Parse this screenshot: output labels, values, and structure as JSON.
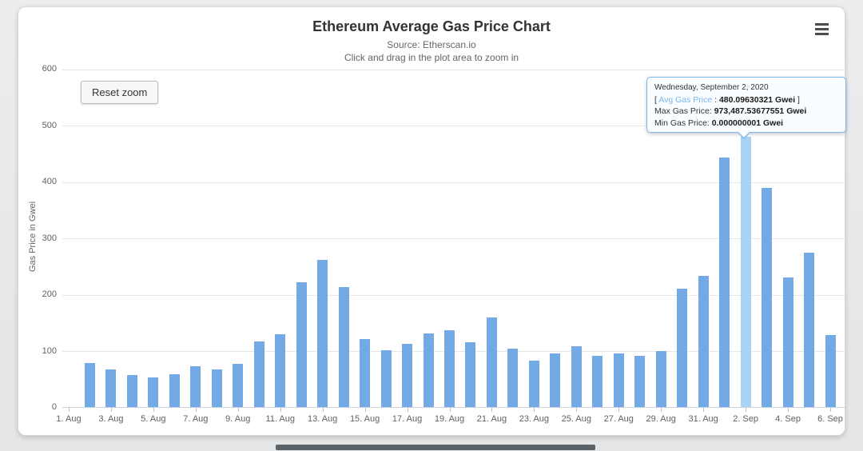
{
  "header": {
    "title": "Ethereum Average Gas Price Chart",
    "subtitle_source": "Source: Etherscan.io",
    "subtitle_hint": "Click and drag in the plot area to zoom in"
  },
  "controls": {
    "reset_zoom_label": "Reset zoom",
    "menu_icon": "hamburger-icon"
  },
  "tooltip": {
    "date": "Wednesday, September 2, 2020",
    "avg_prefix": "[ ",
    "avg_label": "Avg Gas Price",
    "avg_colon": " : ",
    "avg_value": "480.09630321 Gwei",
    "avg_suffix": " ]",
    "max_label": "Max Gas Price: ",
    "max_value": "973,487.53677551 Gwei",
    "min_label": "Min Gas Price: ",
    "min_value": "0.000000001 Gwei"
  },
  "colors": {
    "bar": "#73aae6",
    "bar_highlight": "#a9d3f5",
    "tooltip_border": "#7cb5ec",
    "grid": "#e6e6e6",
    "axis_line": "#ccd1dd",
    "text_dark": "#333333",
    "text_mid": "#666666"
  },
  "chart_data": {
    "type": "bar",
    "title": "Ethereum Average Gas Price Chart",
    "subtitle": "Source: Etherscan.io",
    "xlabel": "",
    "ylabel": "Gas Price in Gwei",
    "ylim": [
      0,
      600
    ],
    "yticks": [
      0,
      100,
      200,
      300,
      400,
      500,
      600
    ],
    "grid": true,
    "legend": "none",
    "categories": [
      "1. Aug",
      "2. Aug",
      "3. Aug",
      "4. Aug",
      "5. Aug",
      "6. Aug",
      "7. Aug",
      "8. Aug",
      "9. Aug",
      "10. Aug",
      "11. Aug",
      "12. Aug",
      "13. Aug",
      "14. Aug",
      "15. Aug",
      "16. Aug",
      "17. Aug",
      "18. Aug",
      "19. Aug",
      "20. Aug",
      "21. Aug",
      "22. Aug",
      "23. Aug",
      "24. Aug",
      "25. Aug",
      "26. Aug",
      "27. Aug",
      "28. Aug",
      "29. Aug",
      "30. Aug",
      "31. Aug",
      "1. Sep",
      "2. Sep",
      "3. Sep",
      "4. Sep",
      "5. Sep",
      "6. Sep"
    ],
    "values": [
      null,
      78,
      67,
      57,
      53,
      58,
      73,
      66,
      77,
      116,
      129,
      221,
      261,
      213,
      121,
      101,
      112,
      130,
      136,
      115,
      159,
      104,
      82,
      95,
      108,
      91,
      95,
      91,
      100,
      210,
      233,
      443,
      480.1,
      389,
      230,
      274,
      128
    ],
    "highlight_index": 32,
    "highlight_value_exact": "480.09630321",
    "xtick_every": 2,
    "xtick_labels": [
      "1. Aug",
      "3. Aug",
      "5. Aug",
      "7. Aug",
      "9. Aug",
      "11. Aug",
      "13. Aug",
      "15. Aug",
      "17. Aug",
      "19. Aug",
      "21. Aug",
      "23. Aug",
      "25. Aug",
      "27. Aug",
      "29. Aug",
      "31. Aug",
      "2. Sep",
      "4. Sep",
      "6. Sep"
    ]
  }
}
